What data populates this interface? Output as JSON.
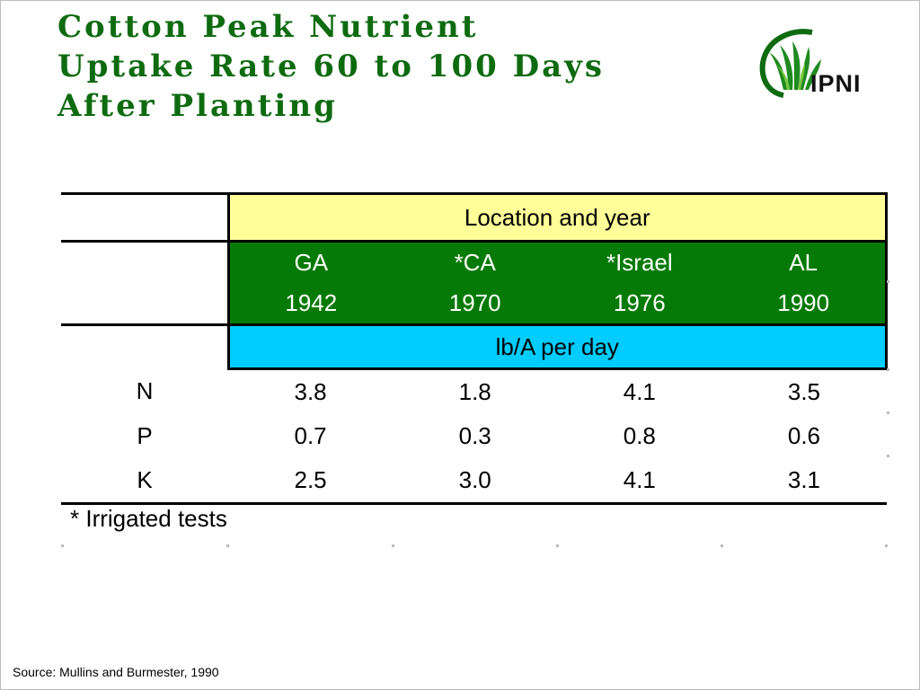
{
  "title": {
    "line1": "Cotton Peak Nutrient",
    "line2": "Uptake Rate 60 to 100 Days",
    "line3": "After Planting"
  },
  "logo": {
    "text": "IPNI",
    "icon": "ipni-leaf-logo",
    "brand_color": "#0e6b10"
  },
  "table": {
    "header_group": "Location and year",
    "columns": [
      {
        "location": "GA",
        "year": "1942"
      },
      {
        "location": "*CA",
        "year": "1970"
      },
      {
        "location": "*Israel",
        "year": "1976"
      },
      {
        "location": "AL",
        "year": "1990"
      }
    ],
    "unit": "lb/A per day",
    "rows": [
      {
        "nutrient": "N",
        "values": [
          "3.8",
          "1.8",
          "4.1",
          "3.5"
        ]
      },
      {
        "nutrient": "P",
        "values": [
          "0.7",
          "0.3",
          "0.8",
          "0.6"
        ]
      },
      {
        "nutrient": "K",
        "values": [
          "2.5",
          "3.0",
          "4.1",
          "3.1"
        ]
      }
    ],
    "colors": {
      "header_group_bg": "#ffff99",
      "location_bg": "#067a06",
      "unit_bg": "#00ccff"
    }
  },
  "footnote": "* Irrigated tests",
  "source": "Source: Mullins and Burmester, 1990"
}
